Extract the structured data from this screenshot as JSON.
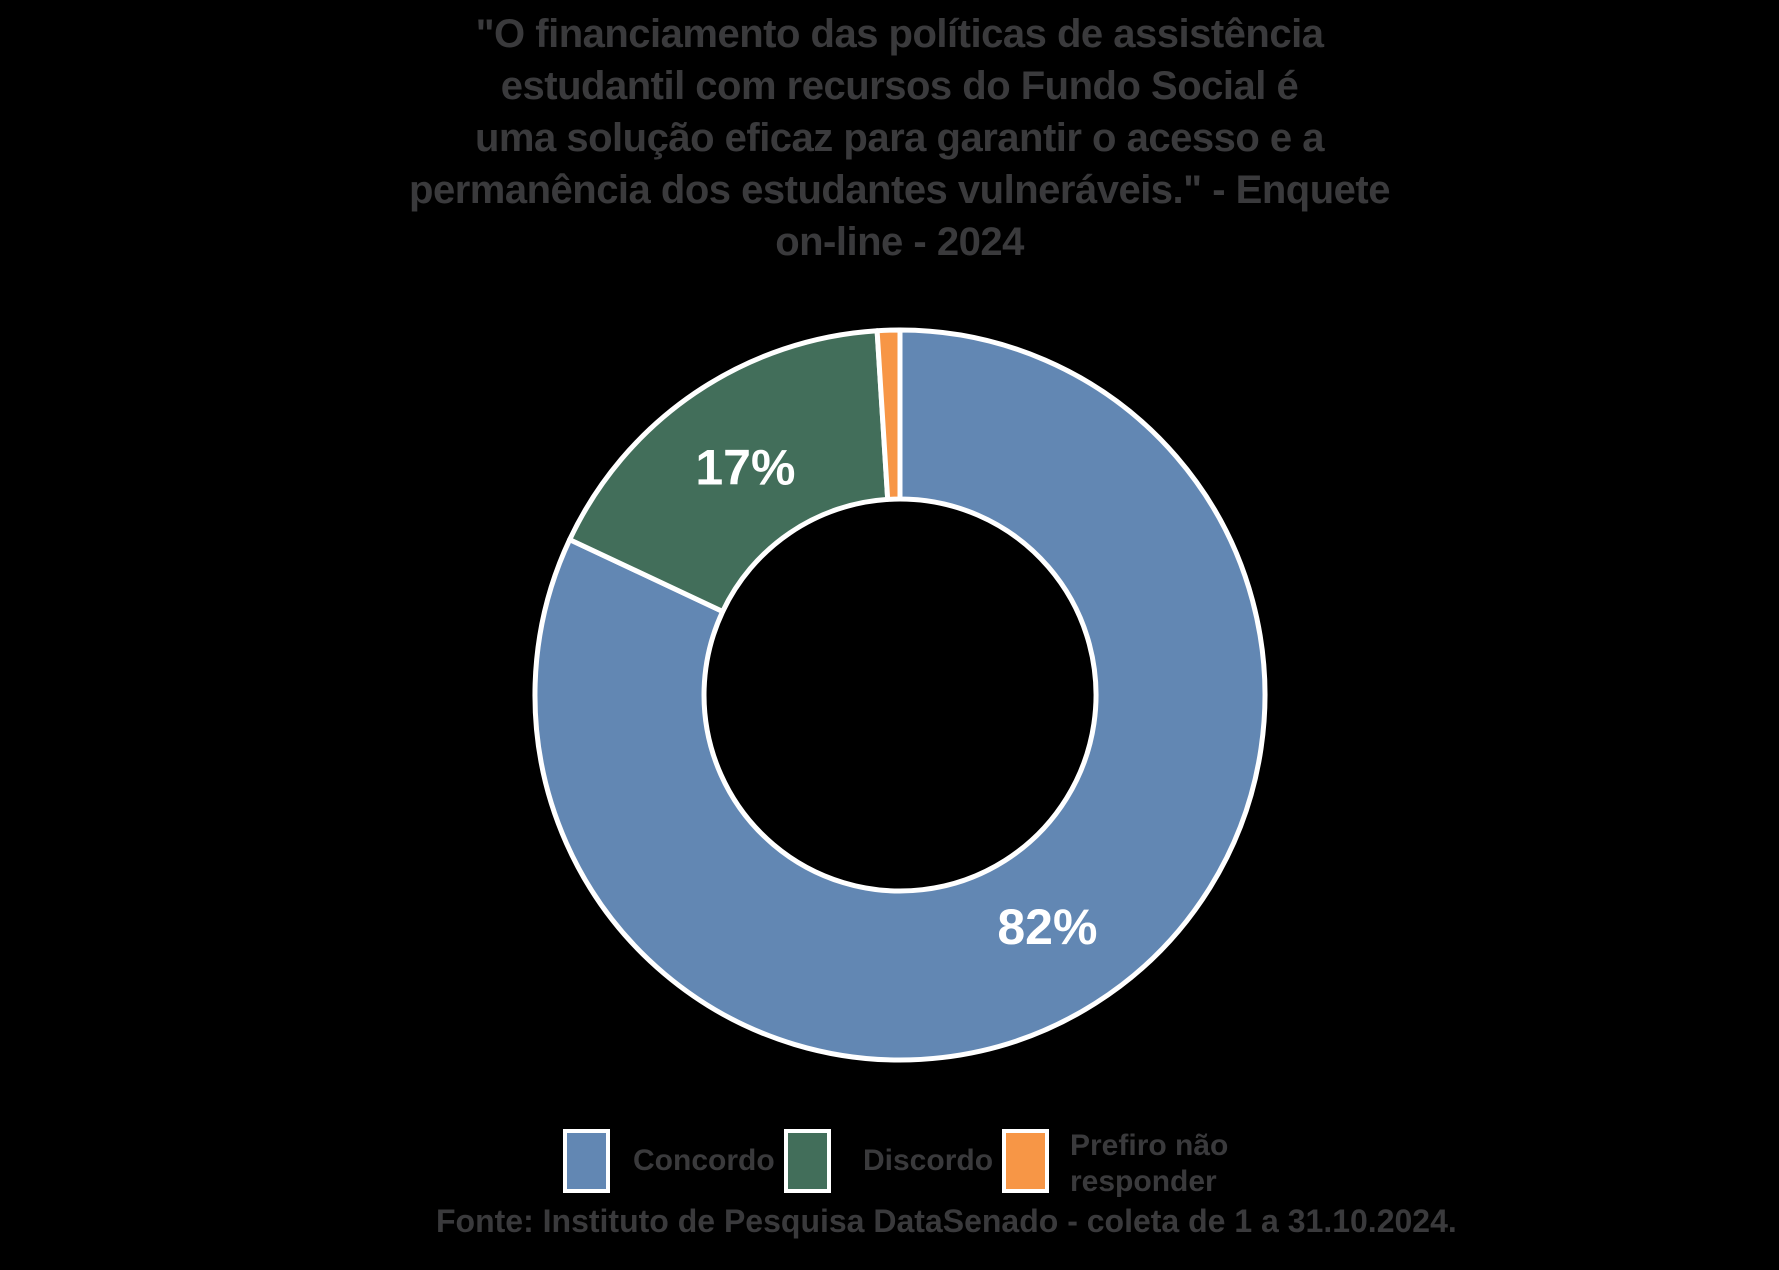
{
  "chart_data": {
    "type": "pie",
    "subtype": "donut",
    "title": "\"O financiamento das políticas de assistência\nestudantil com recursos do Fundo Social é\numa solução eficaz para garantir o acesso e a\npermanência dos estudantes vulneráveis.\" - Enquete\non-line - 2024",
    "categories": [
      "Concordo",
      "Discordo",
      "Prefiro não responder"
    ],
    "values": [
      82,
      17,
      1
    ],
    "unit": "%",
    "data_labels": [
      "82%",
      "17%",
      ""
    ],
    "colors": [
      "#6287B3",
      "#426E5A",
      "#F79646"
    ],
    "data_label_color": "#FFFFFF",
    "slice_border_color": "#FFFFFF",
    "start_angle_deg": 0,
    "direction": "clockwise",
    "donut_hole_ratio": 0.54,
    "legend_position": "bottom",
    "source": "Fonte: Instituto de Pesquisa DataSenado - coleta de 1 a 31.10.2024.",
    "title_color": "#3A3A3C",
    "background_color": "#000000"
  },
  "legend": {
    "items": [
      {
        "label": "Concordo"
      },
      {
        "label": "Discordo"
      },
      {
        "label": "Prefiro não responder"
      }
    ]
  }
}
